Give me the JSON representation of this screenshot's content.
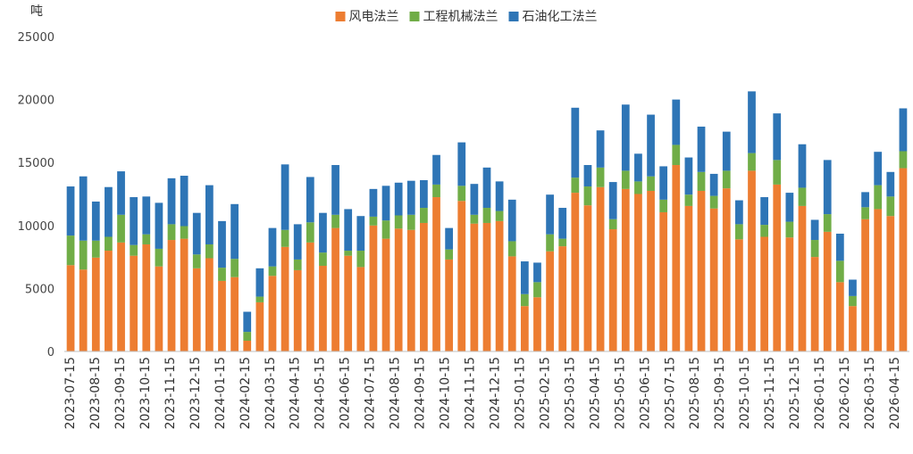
{
  "chart_data": {
    "type": "bar",
    "stacked": true,
    "ylabel": "吨",
    "ylim": [
      0,
      25000
    ],
    "yticks": [
      0,
      5000,
      10000,
      15000,
      20000,
      25000
    ],
    "grid": false,
    "legend": "top-center",
    "colors": {
      "风电法兰": "#ed7d31",
      "工程机械法兰": "#70ad47",
      "石油化工法兰": "#2e75b6"
    },
    "tick_labels": [
      "2023-07-15",
      "2023-08-15",
      "2023-09-15",
      "2023-10-15",
      "2023-11-15",
      "2023-12-15",
      "2024-01-15",
      "2024-02-15",
      "2024-03-15",
      "2024-04-15",
      "2024-05-15",
      "2024-06-15",
      "2024-07-15",
      "2024-08-15",
      "2024-09-15",
      "2024-10-15",
      "2024-11-15",
      "2024-12-15",
      "2025-01-15",
      "2025-02-15",
      "2025-03-15",
      "2025-04-15",
      "2025-05-15",
      "2025-06-15",
      "2025-07-15",
      "2025-08-15",
      "2025-09-15",
      "2025-10-15",
      "2025-11-15",
      "2025-12-15",
      "2026-01-15",
      "2026-02-15",
      "2026-03-15",
      "2026-04-15"
    ],
    "series": [
      {
        "name": "风电法兰",
        "values": [
          6850,
          6500,
          7450,
          8000,
          8650,
          7600,
          8500,
          6750,
          8850,
          8950,
          6600,
          7400,
          5600,
          5900,
          850,
          3900,
          6000,
          8300,
          6450,
          8650,
          6800,
          9800,
          7600,
          6700,
          10000,
          8950,
          9750,
          9650,
          10200,
          12250,
          7300,
          11950,
          10150,
          10200,
          10350,
          7550,
          3600,
          4300,
          7950,
          8350,
          12600,
          11600,
          13050,
          9700,
          12900,
          12500,
          12750,
          11050,
          14800,
          11550,
          12750,
          11350,
          12950,
          8900,
          14350,
          9100,
          13250,
          9050,
          11550,
          7500,
          9500,
          5500,
          3600,
          10500,
          11300,
          10750,
          14550
        ]
      },
      {
        "name": "工程机械法兰",
        "values": [
          2350,
          2300,
          1350,
          1100,
          2200,
          850,
          800,
          1400,
          1250,
          1000,
          1100,
          1100,
          1050,
          1450,
          700,
          450,
          750,
          1350,
          850,
          1600,
          1050,
          1050,
          400,
          1300,
          700,
          1450,
          1050,
          1200,
          1200,
          1000,
          800,
          1200,
          700,
          1200,
          800,
          1200,
          950,
          1200,
          1350,
          600,
          1200,
          1500,
          1550,
          800,
          1450,
          1000,
          1150,
          1000,
          1600,
          900,
          1500,
          1000,
          1400,
          1200,
          1400,
          950,
          1950,
          1250,
          1450,
          1350,
          1400,
          1700,
          800,
          950,
          1900,
          1550,
          1350
        ]
      },
      {
        "name": "石油化工法兰",
        "values": [
          3900,
          5100,
          3100,
          3950,
          3450,
          3800,
          3000,
          3650,
          3650,
          4000,
          3300,
          4700,
          3700,
          4350,
          1600,
          2250,
          3050,
          5200,
          2800,
          3600,
          3150,
          3950,
          3300,
          2750,
          2200,
          2750,
          2600,
          2700,
          2200,
          2350,
          1700,
          3450,
          2450,
          3200,
          2350,
          3300,
          2600,
          1550,
          3150,
          2450,
          5550,
          1700,
          2950,
          2950,
          5250,
          2200,
          4900,
          2650,
          3600,
          2950,
          3600,
          1750,
          3100,
          1900,
          4900,
          2200,
          3700,
          2300,
          3450,
          1600,
          4300,
          2150,
          1300,
          1200,
          2650,
          1950,
          3400
        ]
      }
    ]
  }
}
